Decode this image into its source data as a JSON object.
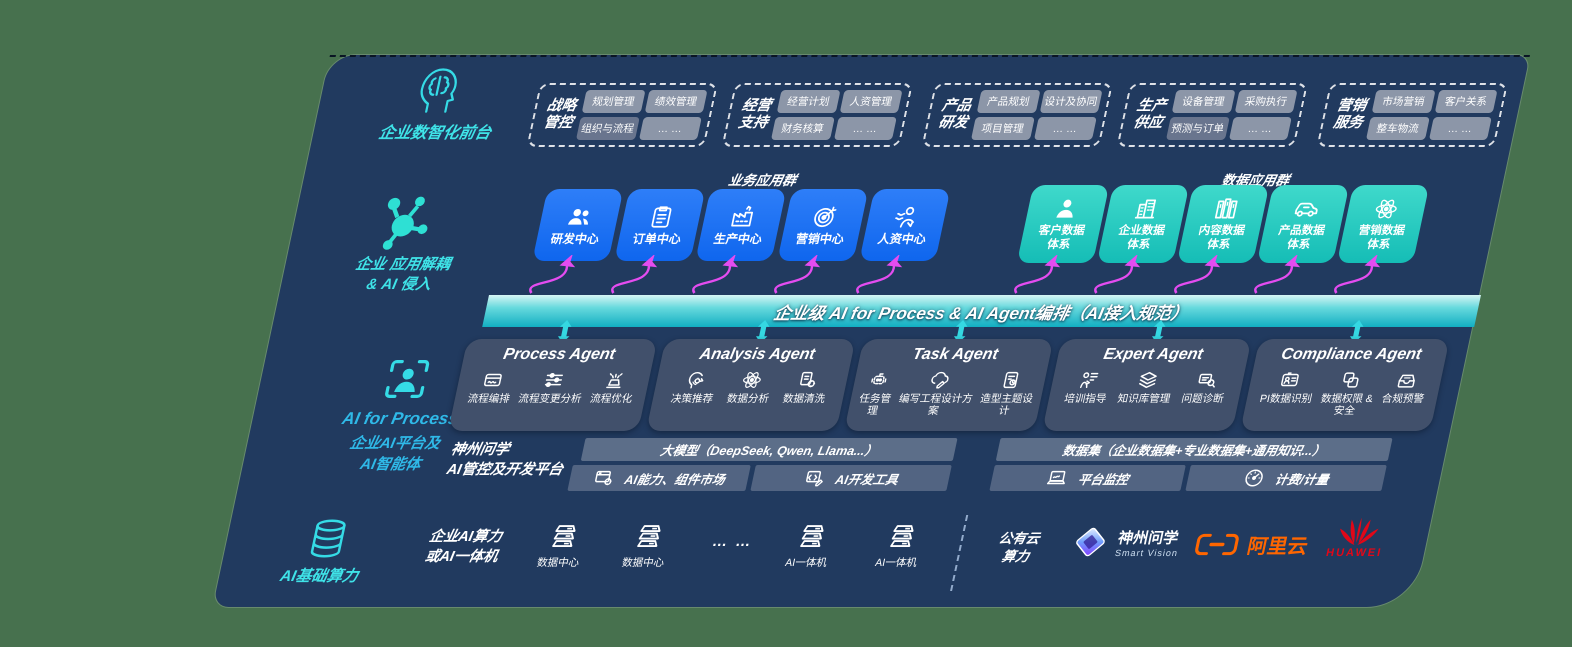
{
  "background_color": "#47714e",
  "panel_color": "#213a5f",
  "accent_colors": {
    "cyan": "#3fe3e8",
    "teal": "#15bdb6",
    "blue": "#1a73f5",
    "magenta": "#e44cf0",
    "slate": "#41506b",
    "orange": "#ff6600",
    "red": "#e10718"
  },
  "front_office": {
    "label": "企业数智化前台",
    "icon": "head-brain-icon",
    "groups": [
      {
        "title": "战略\n管控",
        "chips": [
          "规划管理",
          "绩效管理",
          "组织与流程",
          "… …"
        ]
      },
      {
        "title": "经营\n支持",
        "chips": [
          "经营计划",
          "人资管理",
          "财务核算",
          "… …"
        ]
      },
      {
        "title": "产品\n研发",
        "chips": [
          "产品规划",
          "设计及协同",
          "项目管理",
          "… …"
        ]
      },
      {
        "title": "生产\n供应",
        "chips": [
          "设备管理",
          "采购执行",
          "预测与订单",
          "… …"
        ]
      },
      {
        "title": "营销\n服务",
        "chips": [
          "市场营销",
          "客户关系",
          "整车物流",
          "… …"
        ]
      }
    ]
  },
  "app_layer": {
    "label": "企业 应用解耦\n& AI 侵入",
    "icon": "molecule-icon",
    "business_group_title": "业务应用群",
    "data_group_title": "数据应用群",
    "business_apps": [
      {
        "label": "研发中心",
        "icon": "users-icon"
      },
      {
        "label": "订单中心",
        "icon": "clipboard-icon"
      },
      {
        "label": "生产中心",
        "icon": "factory-icon"
      },
      {
        "label": "营销中心",
        "icon": "target-icon"
      },
      {
        "label": "人资中心",
        "icon": "person-wave-icon"
      }
    ],
    "data_apps": [
      {
        "label": "客户数据\n体系",
        "icon": "person-icon"
      },
      {
        "label": "企业数据\n体系",
        "icon": "building-icon"
      },
      {
        "label": "内容数据\n体系",
        "icon": "books-icon"
      },
      {
        "label": "产品数据\n体系",
        "icon": "car-icon"
      },
      {
        "label": "营销数据\n体系",
        "icon": "atom-icon"
      }
    ]
  },
  "ai_layer": {
    "label_title": "AI for Process",
    "label_sub": "企业AI平台及\nAI智能体",
    "icon": "scan-person-icon",
    "banner": "企业级 AI for Process & AI Agent编排（AI接入规范）",
    "agents": [
      {
        "title": "Process Agent",
        "items": [
          {
            "label": "流程编排",
            "icon": "workflow-icon"
          },
          {
            "label": "流程变更分析",
            "icon": "sliders-icon"
          },
          {
            "label": "流程优化",
            "icon": "optimize-icon"
          }
        ]
      },
      {
        "title": "Analysis Agent",
        "items": [
          {
            "label": "决策推荐",
            "icon": "decision-icon"
          },
          {
            "label": "数据分析",
            "icon": "atom-icon"
          },
          {
            "label": "数据清洗",
            "icon": "clean-icon"
          }
        ]
      },
      {
        "title": "Task Agent",
        "items": [
          {
            "label": "任务管理",
            "icon": "robot-icon"
          },
          {
            "label": "编写工程设计方案",
            "icon": "cloud-pen-icon"
          },
          {
            "label": "造型主题设计",
            "icon": "design-doc-icon"
          }
        ]
      },
      {
        "title": "Expert Agent",
        "items": [
          {
            "label": "培训指导",
            "icon": "training-icon"
          },
          {
            "label": "知识库管理",
            "icon": "layers-icon"
          },
          {
            "label": "问题诊断",
            "icon": "diagnose-icon"
          }
        ]
      },
      {
        "title": "Compliance Agent",
        "items": [
          {
            "label": "PI数据识别",
            "icon": "idcard-icon"
          },
          {
            "label": "数据权限 &\n安全",
            "icon": "permission-icon"
          },
          {
            "label": "合规预警",
            "icon": "tray-icon"
          }
        ]
      }
    ],
    "platform": {
      "label": "神州问学\nAI管控及开发平台",
      "model_bar": "大模型（DeepSeek, Qwen, Llama...）",
      "dataset_bar": "数据集（企业数据集+专业数据集+通用知识...）",
      "tools": [
        {
          "label": "AI能力、组件市场",
          "icon": "market-icon"
        },
        {
          "label": "AI开发工具",
          "icon": "devtools-icon"
        },
        {
          "label": "平台监控",
          "icon": "monitor-icon"
        },
        {
          "label": "计费/计量",
          "icon": "gauge-icon"
        }
      ]
    }
  },
  "compute_layer": {
    "label": "AI基础算力",
    "icon": "database-icon",
    "onprem_label": "企业AI算力\n或AI一体机",
    "nodes": [
      {
        "label": "数据中心",
        "icon": "server-icon"
      },
      {
        "label": "数据中心",
        "icon": "server-icon"
      },
      {
        "label": "AI一体机",
        "icon": "server-icon"
      },
      {
        "label": "AI一体机",
        "icon": "server-icon"
      }
    ],
    "ellipsis": "… …",
    "public_cloud_label": "公有云\n算力",
    "vendors": [
      {
        "name": "神州问学",
        "sub": "Smart Vision",
        "icon": "diamond-logo-icon"
      },
      {
        "name": "阿里云",
        "icon": "aliyun-brackets-icon"
      },
      {
        "name": "HUAWEI",
        "icon": "huawei-flower-icon"
      }
    ]
  }
}
